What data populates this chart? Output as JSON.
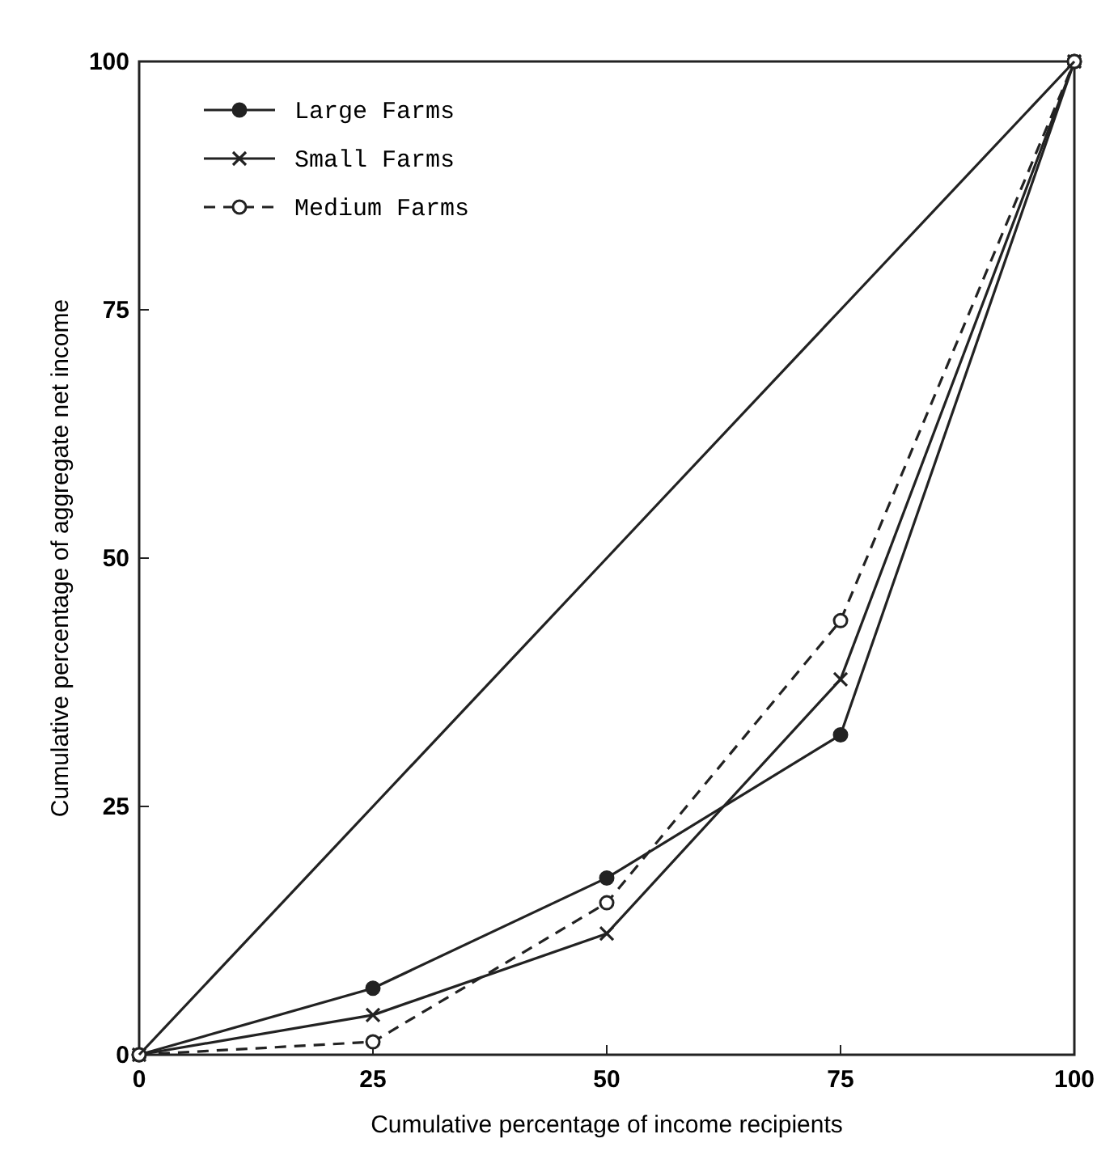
{
  "chart_data": {
    "type": "line",
    "xlabel": "Cumulative percentage of income recipients",
    "ylabel": "Cumulative percentage of aggregate net income",
    "x": [
      0,
      25,
      50,
      75,
      100
    ],
    "xlim": [
      0,
      100
    ],
    "xticks": [
      0,
      25,
      50,
      75,
      100
    ],
    "ylim": [
      0,
      100
    ],
    "yticks": [
      0,
      25,
      50,
      75,
      100
    ],
    "grid": false,
    "legend": "top left",
    "series": [
      {
        "name": "Large Farms",
        "color": "#222222",
        "values": [
          0,
          6.7,
          17.8,
          32.2,
          100
        ],
        "marker": "circle",
        "line_style": "solid"
      },
      {
        "name": "Small Farms",
        "color": "#222222",
        "values": [
          0,
          4,
          12.2,
          37.8,
          100
        ],
        "marker": "cross",
        "line_style": "solid"
      },
      {
        "name": "Medium Farms",
        "color": "#222222",
        "values": [
          0,
          1.3,
          15.3,
          43.7,
          100
        ],
        "marker": "circle",
        "line_style": "dashed"
      },
      {
        "color": "#222222",
        "values": [
          0,
          25,
          50,
          75,
          100
        ],
        "marker": "none",
        "line_style": "solid"
      }
    ]
  }
}
